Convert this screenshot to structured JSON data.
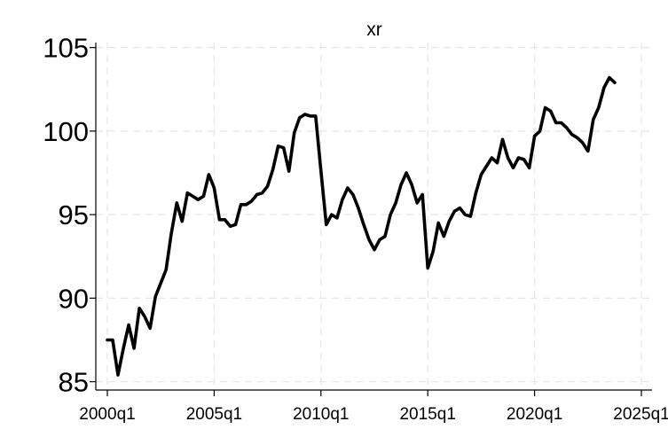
{
  "chart_data": {
    "type": "line",
    "title": "xr",
    "xlabel": "",
    "ylabel": "",
    "x_tick_labels": [
      "2000q1",
      "2005q1",
      "2010q1",
      "2015q1",
      "2020q1",
      "2025q1"
    ],
    "x_tick_years": [
      2000,
      2005,
      2010,
      2015,
      2020,
      2025
    ],
    "y_ticks": [
      85,
      90,
      95,
      100,
      105
    ],
    "ylim": [
      84.5,
      105.3
    ],
    "grid": true,
    "line_color": "#000000",
    "x": [
      "2000q1",
      "2000q2",
      "2000q3",
      "2000q4",
      "2001q1",
      "2001q2",
      "2001q3",
      "2001q4",
      "2002q1",
      "2002q2",
      "2002q3",
      "2002q4",
      "2003q1",
      "2003q2",
      "2003q3",
      "2003q4",
      "2004q1",
      "2004q2",
      "2004q3",
      "2004q4",
      "2005q1",
      "2005q2",
      "2005q3",
      "2005q4",
      "2006q1",
      "2006q2",
      "2006q3",
      "2006q4",
      "2007q1",
      "2007q2",
      "2007q3",
      "2007q4",
      "2008q1",
      "2008q2",
      "2008q3",
      "2008q4",
      "2009q1",
      "2009q2",
      "2009q3",
      "2009q4",
      "2010q1",
      "2010q2",
      "2010q3",
      "2010q4",
      "2011q1",
      "2011q2",
      "2011q3",
      "2011q4",
      "2012q1",
      "2012q2",
      "2012q3",
      "2012q4",
      "2013q1",
      "2013q2",
      "2013q3",
      "2013q4",
      "2014q1",
      "2014q2",
      "2014q3",
      "2014q4",
      "2015q1",
      "2015q2",
      "2015q3",
      "2015q4",
      "2016q1",
      "2016q2",
      "2016q3",
      "2016q4",
      "2017q1",
      "2017q2",
      "2017q3",
      "2017q4",
      "2018q1",
      "2018q2",
      "2018q3",
      "2018q4",
      "2019q1",
      "2019q2",
      "2019q3",
      "2019q4",
      "2020q1",
      "2020q2",
      "2020q3",
      "2020q4",
      "2021q1",
      "2021q2",
      "2021q3",
      "2021q4",
      "2022q1",
      "2022q2",
      "2022q3",
      "2022q4",
      "2023q1",
      "2023q2",
      "2023q3",
      "2023q4"
    ],
    "values": [
      87.5,
      87.5,
      85.4,
      87.0,
      88.4,
      87.0,
      89.4,
      88.9,
      88.2,
      90.1,
      90.9,
      91.7,
      93.9,
      95.7,
      94.6,
      96.3,
      96.1,
      95.9,
      96.1,
      97.4,
      96.6,
      94.7,
      94.7,
      94.3,
      94.4,
      95.6,
      95.6,
      95.8,
      96.2,
      96.3,
      96.7,
      97.7,
      99.1,
      99.0,
      97.6,
      99.9,
      100.8,
      101.0,
      100.9,
      100.9,
      97.6,
      94.4,
      95.0,
      94.8,
      95.9,
      96.6,
      96.2,
      95.4,
      94.4,
      93.5,
      92.9,
      93.5,
      93.7,
      95.0,
      95.7,
      96.8,
      97.5,
      96.8,
      95.7,
      96.2,
      91.8,
      92.8,
      94.5,
      93.7,
      94.6,
      95.2,
      95.4,
      95.0,
      94.9,
      96.3,
      97.4,
      97.9,
      98.4,
      98.1,
      99.5,
      98.4,
      97.8,
      98.4,
      98.3,
      97.8,
      99.7,
      100.0,
      101.4,
      101.2,
      100.5,
      100.5,
      100.2,
      99.8,
      99.6,
      99.3,
      98.8,
      100.7,
      101.4,
      102.6,
      103.2,
      102.9
    ]
  }
}
